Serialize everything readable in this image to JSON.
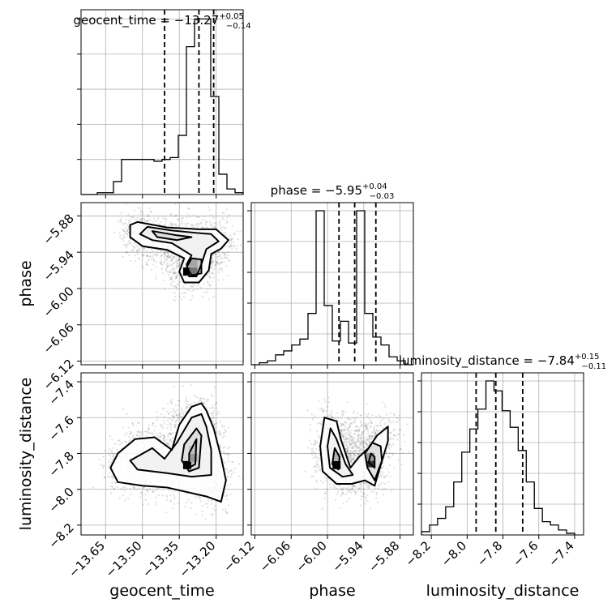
{
  "chart_data": {
    "type": "corner",
    "parameters": [
      "geocent_time",
      "phase",
      "luminosity_distance"
    ],
    "titles": {
      "geocent_time": {
        "name": "geocent_time",
        "median": "−13.27",
        "plus": "+0.05",
        "minus": "−0.14"
      },
      "phase": {
        "name": "phase",
        "median": "−5.95",
        "plus": "+0.04",
        "minus": "−0.03"
      },
      "luminosity_distance": {
        "name": "luminosity_distance",
        "median": "−7.84",
        "plus": "+0.15",
        "minus": "−0.11"
      }
    },
    "ranges": {
      "geocent_time": [
        -13.75,
        -13.09
      ],
      "phase": [
        -6.126,
        -5.858
      ],
      "luminosity_distance": [
        -8.255,
        -7.35
      ]
    },
    "ticks": {
      "geocent_time": [
        -13.65,
        -13.5,
        -13.35,
        -13.2
      ],
      "phase": [
        -6.12,
        -6.06,
        -6.0,
        -5.94,
        -5.88
      ],
      "luminosity_distance": [
        -8.2,
        -8.0,
        -7.8,
        -7.6,
        -7.4
      ]
    },
    "tick_labels": {
      "geocent_time": [
        "−13.65",
        "−13.50",
        "−13.35",
        "−13.20"
      ],
      "phase": [
        "−6.12",
        "−6.06",
        "−6.00",
        "−5.94",
        "−5.88"
      ],
      "luminosity_distance": [
        "−8.2",
        "−8.0",
        "−7.8",
        "−7.6",
        "−7.4"
      ]
    },
    "quantiles": {
      "geocent_time": [
        -13.41,
        -13.27,
        -13.21
      ],
      "phase": [
        -5.981,
        -5.955,
        -5.92
      ],
      "luminosity_distance": [
        -7.95,
        -7.84,
        -7.69
      ]
    },
    "histograms": {
      "geocent_time": {
        "edges": [
          -13.75,
          -13.717,
          -13.684,
          -13.651,
          -13.618,
          -13.585,
          -13.552,
          -13.519,
          -13.486,
          -13.453,
          -13.42,
          -13.387,
          -13.354,
          -13.321,
          -13.288,
          -13.255,
          -13.222,
          -13.189,
          -13.156,
          -13.123,
          -13.09
        ],
        "counts": [
          0,
          0,
          1,
          1,
          7,
          19,
          19,
          19,
          19,
          18,
          19,
          20,
          32,
          80,
          95,
          95,
          53,
          11,
          3,
          1
        ]
      },
      "phase": {
        "edges": [
          -6.126,
          -6.1126,
          -6.0992,
          -6.0858,
          -6.0724,
          -6.059,
          -6.0456,
          -6.0322,
          -6.0188,
          -6.0054,
          -5.992,
          -5.9786,
          -5.9652,
          -5.9518,
          -5.9384,
          -5.925,
          -5.9116,
          -5.8982,
          -5.8848,
          -5.8714,
          -5.858
        ],
        "counts": [
          0,
          1,
          2,
          5,
          7,
          10,
          13,
          26,
          78,
          30,
          12,
          22,
          11,
          78,
          26,
          14,
          10,
          4,
          2,
          0
        ]
      },
      "luminosity_distance": {
        "edges": [
          -8.255,
          -8.21,
          -8.165,
          -8.12,
          -8.075,
          -8.03,
          -7.985,
          -7.94,
          -7.895,
          -7.85,
          -7.805,
          -7.76,
          -7.715,
          -7.67,
          -7.625,
          -7.58,
          -7.535,
          -7.49,
          -7.445,
          -7.4
        ],
        "counts": [
          2,
          6,
          10,
          17,
          32,
          50,
          64,
          76,
          93,
          87,
          75,
          65,
          51,
          32,
          16,
          8,
          6,
          3,
          1
        ]
      }
    },
    "pairs": [
      {
        "x": "geocent_time",
        "y": "phase",
        "contours": [
          [
            [
              -13.52,
              -5.89
            ],
            [
              -13.4,
              -5.899
            ],
            [
              -13.27,
              -5.902
            ],
            [
              -13.2,
              -5.902
            ],
            [
              -13.15,
              -5.92
            ],
            [
              -13.18,
              -5.934
            ],
            [
              -13.22,
              -5.943
            ],
            [
              -13.23,
              -5.97
            ],
            [
              -13.27,
              -5.99
            ],
            [
              -13.33,
              -5.99
            ],
            [
              -13.35,
              -5.972
            ],
            [
              -13.33,
              -5.95
            ],
            [
              -13.4,
              -5.936
            ],
            [
              -13.5,
              -5.93
            ],
            [
              -13.55,
              -5.915
            ],
            [
              -13.55,
              -5.895
            ]
          ],
          [
            [
              -13.48,
              -5.898
            ],
            [
              -13.38,
              -5.904
            ],
            [
              -13.28,
              -5.908
            ],
            [
              -13.22,
              -5.91
            ],
            [
              -13.19,
              -5.922
            ],
            [
              -13.24,
              -5.935
            ],
            [
              -13.26,
              -5.96
            ],
            [
              -13.28,
              -5.98
            ],
            [
              -13.31,
              -5.98
            ],
            [
              -13.32,
              -5.96
            ],
            [
              -13.3,
              -5.945
            ],
            [
              -13.38,
              -5.925
            ],
            [
              -13.46,
              -5.92
            ],
            [
              -13.51,
              -5.91
            ]
          ],
          [
            [
              -13.46,
              -5.905
            ],
            [
              -13.36,
              -5.912
            ],
            [
              -13.3,
              -5.915
            ],
            [
              -13.36,
              -5.92
            ],
            [
              -13.44,
              -5.915
            ]
          ],
          [
            [
              -13.3,
              -5.95
            ],
            [
              -13.26,
              -5.952
            ],
            [
              -13.26,
              -5.975
            ],
            [
              -13.3,
              -5.978
            ],
            [
              -13.32,
              -5.965
            ]
          ]
        ],
        "cells": [
          [
            -13.318,
            -5.972,
            1.0
          ],
          [
            -13.293,
            -5.972,
            0.55
          ],
          [
            -13.293,
            -5.958,
            0.35
          ]
        ]
      },
      {
        "x": "geocent_time",
        "y": "luminosity_distance",
        "contours": [
          [
            [
              -13.6,
              -7.8
            ],
            [
              -13.53,
              -7.72
            ],
            [
              -13.45,
              -7.71
            ],
            [
              -13.38,
              -7.78
            ],
            [
              -13.35,
              -7.64
            ],
            [
              -13.3,
              -7.54
            ],
            [
              -13.26,
              -7.52
            ],
            [
              -13.24,
              -7.56
            ],
            [
              -13.21,
              -7.66
            ],
            [
              -13.18,
              -7.82
            ],
            [
              -13.16,
              -7.95
            ],
            [
              -13.18,
              -8.07
            ],
            [
              -13.24,
              -8.04
            ],
            [
              -13.4,
              -7.99
            ],
            [
              -13.5,
              -7.98
            ],
            [
              -13.6,
              -7.96
            ],
            [
              -13.63,
              -7.88
            ]
          ],
          [
            [
              -13.55,
              -7.84
            ],
            [
              -13.46,
              -7.77
            ],
            [
              -13.41,
              -7.83
            ],
            [
              -13.36,
              -7.74
            ],
            [
              -13.3,
              -7.6
            ],
            [
              -13.26,
              -7.58
            ],
            [
              -13.24,
              -7.65
            ],
            [
              -13.22,
              -7.78
            ],
            [
              -13.22,
              -7.92
            ],
            [
              -13.3,
              -7.93
            ],
            [
              -13.4,
              -7.91
            ],
            [
              -13.52,
              -7.89
            ]
          ],
          [
            [
              -13.33,
              -7.75
            ],
            [
              -13.28,
              -7.66
            ],
            [
              -13.26,
              -7.7
            ],
            [
              -13.27,
              -7.88
            ],
            [
              -13.31,
              -7.9
            ],
            [
              -13.34,
              -7.84
            ]
          ],
          [
            [
              -13.31,
              -7.8
            ],
            [
              -13.28,
              -7.72
            ],
            [
              -13.285,
              -7.86
            ],
            [
              -13.31,
              -7.88
            ]
          ]
        ],
        "cells": [
          [
            -13.318,
            -7.865,
            1.0
          ],
          [
            -13.293,
            -7.825,
            0.4
          ],
          [
            -13.293,
            -7.78,
            0.25
          ]
        ]
      },
      {
        "x": "phase",
        "y": "luminosity_distance",
        "contours": [
          [
            [
              -6.005,
              -7.6
            ],
            [
              -5.985,
              -7.62
            ],
            [
              -5.978,
              -7.72
            ],
            [
              -5.962,
              -7.88
            ],
            [
              -5.948,
              -7.82
            ],
            [
              -5.932,
              -7.77
            ],
            [
              -5.918,
              -7.7
            ],
            [
              -5.9,
              -7.65
            ],
            [
              -5.9,
              -7.73
            ],
            [
              -5.922,
              -7.98
            ],
            [
              -5.938,
              -7.95
            ],
            [
              -5.96,
              -7.97
            ],
            [
              -5.985,
              -7.97
            ],
            [
              -6.008,
              -7.9
            ],
            [
              -6.012,
              -7.76
            ]
          ],
          [
            [
              -5.995,
              -7.66
            ],
            [
              -5.985,
              -7.72
            ],
            [
              -5.97,
              -7.86
            ],
            [
              -5.958,
              -7.92
            ],
            [
              -5.975,
              -7.93
            ],
            [
              -5.996,
              -7.88
            ],
            [
              -6.0,
              -7.76
            ]
          ],
          [
            [
              -5.938,
              -7.8
            ],
            [
              -5.926,
              -7.74
            ],
            [
              -5.912,
              -7.76
            ],
            [
              -5.91,
              -7.84
            ],
            [
              -5.922,
              -7.95
            ],
            [
              -5.934,
              -7.88
            ]
          ],
          [
            [
              -5.988,
              -7.77
            ],
            [
              -5.98,
              -7.82
            ],
            [
              -5.982,
              -7.89
            ],
            [
              -5.992,
              -7.86
            ]
          ],
          [
            [
              -5.928,
              -7.8
            ],
            [
              -5.922,
              -7.82
            ],
            [
              -5.922,
              -7.88
            ],
            [
              -5.932,
              -7.85
            ]
          ]
        ],
        "cells": [
          [
            -5.985,
            -7.865,
            1.0
          ],
          [
            -5.929,
            -7.855,
            0.8
          ],
          [
            -5.929,
            -7.82,
            0.4
          ],
          [
            -5.985,
            -7.82,
            0.3
          ]
        ]
      }
    ]
  }
}
